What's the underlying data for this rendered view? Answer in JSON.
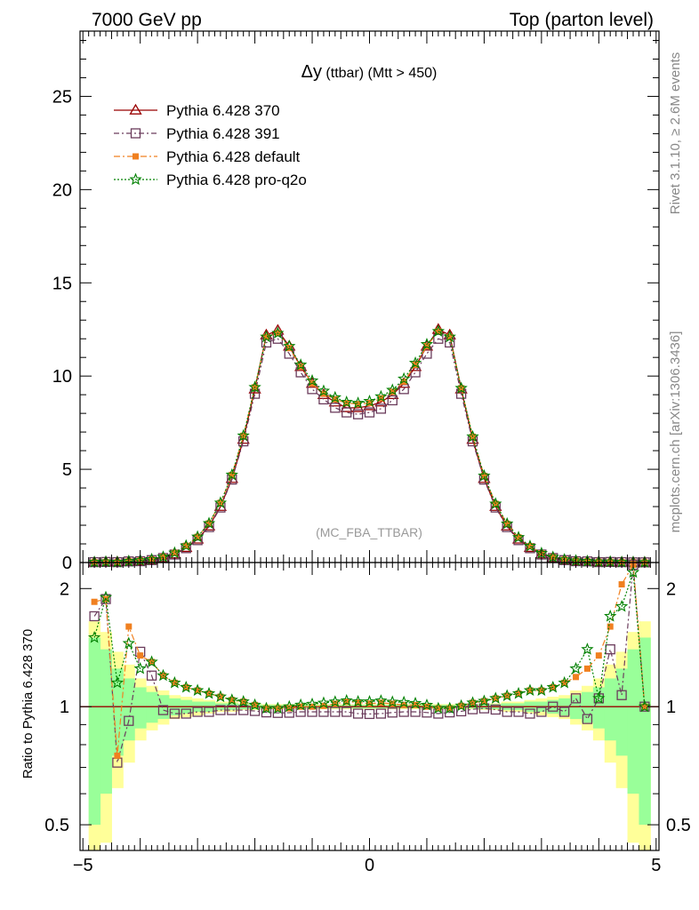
{
  "header": {
    "left": "7000 GeV pp",
    "right": "Top (parton level)"
  },
  "side": {
    "rivet": "Rivet 3.1.10, ≥ 2.6M events",
    "mcplots": "mcplots.cern.ch [arXiv:1306.3436]"
  },
  "title_main": "Δy",
  "title_sub": " (ttbar) (Mtt > 450)",
  "watermark": "(MC_FBA_TTBAR)",
  "ratio_ylabel": "Ratio to Pythia 6.428 370",
  "colors": {
    "p370": "#990000",
    "p391": "#6b3c5c",
    "pdef": "#f08020",
    "pq2o": "#008000",
    "band_inner": "#99ff99",
    "band_outer": "#ffff99"
  },
  "chart_data": [
    {
      "type": "line",
      "xlim": [
        -5.05,
        5.05
      ],
      "ylim": [
        0,
        28.5
      ],
      "yticks": [
        0,
        5,
        10,
        15,
        20,
        25
      ],
      "legend_position": "top-left",
      "x": [
        -4.8,
        -4.6,
        -4.4,
        -4.2,
        -4.0,
        -3.8,
        -3.6,
        -3.4,
        -3.2,
        -3.0,
        -2.8,
        -2.6,
        -2.4,
        -2.2,
        -2.0,
        -1.8,
        -1.6,
        -1.4,
        -1.2,
        -1.0,
        -0.8,
        -0.6,
        -0.4,
        -0.2,
        0.0,
        0.2,
        0.4,
        0.6,
        0.8,
        1.0,
        1.2,
        1.4,
        1.6,
        1.8,
        2.0,
        2.2,
        2.4,
        2.6,
        2.8,
        3.0,
        3.2,
        3.4,
        3.6,
        3.8,
        4.0,
        4.2,
        4.4,
        4.6,
        4.8
      ],
      "series": [
        {
          "name": "Pythia 6.428 370",
          "key": "p370",
          "marker": "triangle",
          "values": [
            0.01,
            0.02,
            0.03,
            0.05,
            0.08,
            0.13,
            0.25,
            0.45,
            0.8,
            1.25,
            1.95,
            3.0,
            4.5,
            6.6,
            9.3,
            12.2,
            12.45,
            11.6,
            10.5,
            9.6,
            9.0,
            8.6,
            8.3,
            8.3,
            8.4,
            8.6,
            9.0,
            9.6,
            10.5,
            11.6,
            12.5,
            12.2,
            9.3,
            6.6,
            4.5,
            3.0,
            1.95,
            1.25,
            0.8,
            0.45,
            0.25,
            0.13,
            0.08,
            0.05,
            0.03,
            0.02,
            0.01,
            0.01,
            0.01
          ]
        },
        {
          "name": "Pythia 6.428 391",
          "key": "p391",
          "marker": "square",
          "values": [
            0.02,
            0.03,
            0.02,
            0.06,
            0.07,
            0.13,
            0.24,
            0.43,
            0.77,
            1.2,
            1.9,
            2.95,
            4.45,
            6.5,
            9.05,
            11.8,
            12.0,
            11.2,
            10.2,
            9.3,
            8.75,
            8.3,
            8.05,
            7.95,
            8.05,
            8.25,
            8.7,
            9.3,
            10.2,
            11.2,
            12.0,
            11.8,
            9.05,
            6.5,
            4.45,
            2.95,
            1.9,
            1.2,
            0.77,
            0.43,
            0.24,
            0.13,
            0.07,
            0.06,
            0.02,
            0.03,
            0.02,
            0.01,
            0.01
          ]
        },
        {
          "name": "Pythia 6.428 default",
          "key": "pdef",
          "marker": "filled-square",
          "values": [
            0.02,
            0.03,
            0.02,
            0.08,
            0.11,
            0.17,
            0.3,
            0.52,
            0.9,
            1.38,
            2.1,
            3.2,
            4.7,
            6.8,
            9.4,
            12.1,
            12.3,
            11.5,
            10.5,
            9.6,
            9.05,
            8.75,
            8.55,
            8.5,
            8.55,
            8.8,
            9.15,
            9.7,
            10.6,
            11.6,
            12.4,
            12.1,
            9.35,
            6.75,
            4.65,
            3.15,
            2.08,
            1.35,
            0.88,
            0.5,
            0.29,
            0.16,
            0.1,
            0.07,
            0.04,
            0.04,
            0.02,
            0.02,
            0.01
          ]
        },
        {
          "name": "Pythia 6.428 pro-q2o",
          "key": "pq2o",
          "marker": "star",
          "values": [
            0.02,
            0.04,
            0.02,
            0.07,
            0.11,
            0.17,
            0.3,
            0.52,
            0.9,
            1.38,
            2.1,
            3.2,
            4.7,
            6.8,
            9.4,
            12.1,
            12.3,
            11.6,
            10.6,
            9.75,
            9.2,
            8.85,
            8.6,
            8.55,
            8.65,
            8.9,
            9.25,
            9.85,
            10.7,
            11.7,
            12.4,
            12.1,
            9.35,
            6.75,
            4.65,
            3.15,
            2.08,
            1.35,
            0.88,
            0.5,
            0.29,
            0.16,
            0.1,
            0.07,
            0.04,
            0.04,
            0.02,
            0.02,
            0.01
          ]
        }
      ]
    },
    {
      "type": "line",
      "ylabel": "Ratio to Pythia 6.428 370",
      "xlim": [
        -5.05,
        5.05
      ],
      "ylim": [
        0.43,
        2.33
      ],
      "log_y": true,
      "yticks": [
        0.5,
        1,
        2
      ],
      "xticks": [
        -5,
        0,
        5
      ],
      "band_inner_halfwidth": [
        0.5,
        0.4,
        0.25,
        0.18,
        0.12,
        0.09,
        0.07,
        0.05,
        0.04,
        0.03,
        0.03,
        0.02,
        0.02,
        0.015,
        0.015,
        0.01,
        0.01,
        0.01,
        0.01,
        0.01,
        0.01,
        0.01,
        0.01,
        0.01,
        0.01,
        0.01,
        0.01,
        0.01,
        0.01,
        0.01,
        0.01,
        0.01,
        0.01,
        0.01,
        0.015,
        0.015,
        0.02,
        0.02,
        0.03,
        0.03,
        0.04,
        0.05,
        0.07,
        0.09,
        0.12,
        0.18,
        0.25,
        0.4,
        0.5
      ],
      "band_outer_halfwidth": [
        0.65,
        0.55,
        0.38,
        0.28,
        0.18,
        0.13,
        0.1,
        0.07,
        0.06,
        0.05,
        0.04,
        0.03,
        0.03,
        0.02,
        0.02,
        0.015,
        0.015,
        0.015,
        0.015,
        0.015,
        0.015,
        0.015,
        0.015,
        0.015,
        0.015,
        0.015,
        0.015,
        0.015,
        0.015,
        0.015,
        0.015,
        0.015,
        0.015,
        0.015,
        0.02,
        0.02,
        0.03,
        0.03,
        0.04,
        0.05,
        0.06,
        0.07,
        0.1,
        0.13,
        0.18,
        0.28,
        0.38,
        0.55,
        0.65
      ],
      "series": [
        {
          "name": "Pythia 6.428 391",
          "key": "p391",
          "values": [
            1.7,
            1.88,
            0.72,
            0.92,
            1.38,
            1.2,
            0.98,
            0.96,
            0.96,
            0.97,
            0.97,
            0.98,
            0.98,
            0.98,
            0.975,
            0.967,
            0.964,
            0.965,
            0.97,
            0.97,
            0.97,
            0.97,
            0.97,
            0.96,
            0.958,
            0.96,
            0.966,
            0.97,
            0.97,
            0.966,
            0.96,
            0.967,
            0.973,
            0.985,
            0.99,
            0.983,
            0.97,
            0.97,
            0.96,
            0.97,
            1.0,
            0.97,
            1.05,
            0.93,
            1.05,
            1.4,
            1.07,
            2.3,
            1.0
          ]
        },
        {
          "name": "Pythia 6.428 default",
          "key": "pdef",
          "values": [
            1.85,
            1.88,
            0.75,
            1.6,
            1.35,
            1.3,
            1.2,
            1.15,
            1.12,
            1.1,
            1.08,
            1.06,
            1.04,
            1.03,
            1.01,
            0.99,
            0.99,
            0.99,
            1.0,
            1.0,
            1.005,
            1.017,
            1.03,
            1.025,
            1.018,
            1.023,
            1.017,
            1.01,
            1.01,
            1.0,
            0.99,
            0.99,
            1.005,
            1.023,
            1.033,
            1.05,
            1.066,
            1.08,
            1.1,
            1.1,
            1.12,
            1.15,
            1.19,
            1.25,
            1.35,
            1.6,
            2.05,
            2.3,
            1.0
          ]
        },
        {
          "name": "Pythia 6.428 pro-q2o",
          "key": "pq2o",
          "values": [
            1.5,
            1.9,
            1.15,
            1.45,
            1.25,
            1.3,
            1.2,
            1.15,
            1.12,
            1.1,
            1.08,
            1.06,
            1.04,
            1.03,
            1.01,
            0.99,
            0.99,
            1.0,
            1.01,
            1.015,
            1.022,
            1.029,
            1.036,
            1.03,
            1.03,
            1.035,
            1.028,
            1.026,
            1.02,
            1.009,
            0.99,
            0.99,
            1.005,
            1.023,
            1.033,
            1.05,
            1.066,
            1.08,
            1.1,
            1.1,
            1.12,
            1.15,
            1.25,
            1.4,
            1.05,
            1.7,
            1.8,
            2.2,
            1.0
          ]
        }
      ]
    }
  ]
}
